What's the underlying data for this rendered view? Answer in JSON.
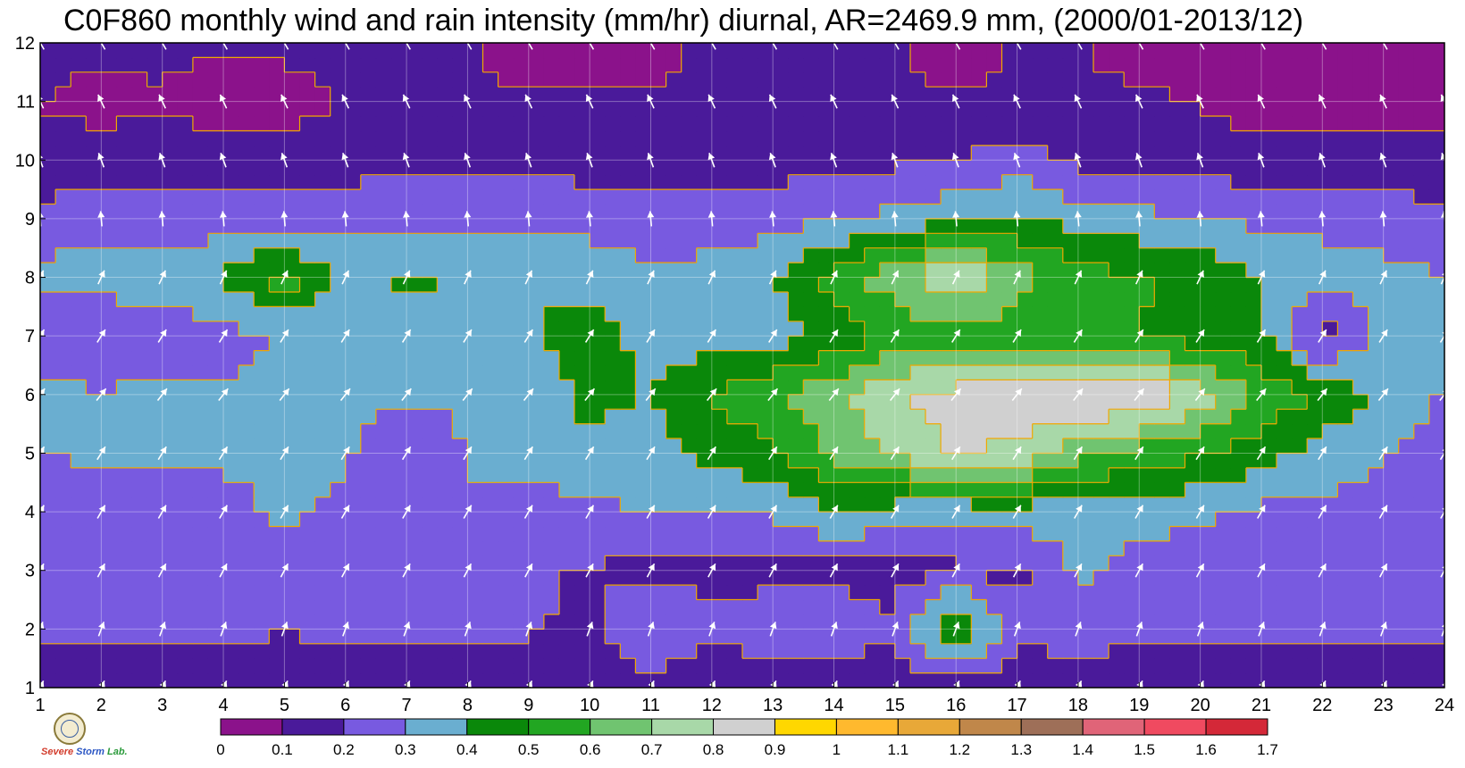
{
  "chart_data": {
    "type": "heatmap",
    "title": "C0F860 monthly wind and rain intensity (mm/hr) diurnal, AR=2469.9 mm, (2000/01-2013/12)",
    "x": [
      1,
      2,
      3,
      4,
      5,
      6,
      7,
      8,
      9,
      10,
      11,
      12,
      13,
      14,
      15,
      16,
      17,
      18,
      19,
      20,
      21,
      22,
      23,
      24
    ],
    "y": [
      1,
      2,
      3,
      4,
      5,
      6,
      7,
      8,
      9,
      10,
      11,
      12
    ],
    "xlim": [
      1,
      24
    ],
    "ylim": [
      1,
      12
    ],
    "x_ticks": [
      "1",
      "2",
      "3",
      "4",
      "5",
      "6",
      "7",
      "8",
      "9",
      "10",
      "11",
      "12",
      "13",
      "14",
      "15",
      "16",
      "17",
      "18",
      "19",
      "20",
      "21",
      "22",
      "23",
      "24"
    ],
    "y_ticks": [
      "1",
      "2",
      "3",
      "4",
      "5",
      "6",
      "7",
      "8",
      "9",
      "10",
      "11",
      "12"
    ],
    "grid": true,
    "z": [
      [
        0.12,
        0.13,
        0.13,
        0.13,
        0.11,
        0.13,
        0.13,
        0.14,
        0.14,
        0.14,
        0.14,
        0.13,
        0.14,
        0.14,
        0.14,
        0.14,
        0.17,
        0.18,
        0.17,
        0.16,
        0.15,
        0.14,
        0.14,
        0.15
      ],
      [
        0.22,
        0.21,
        0.22,
        0.22,
        0.21,
        0.22,
        0.21,
        0.21,
        0.21,
        0.18,
        0.32,
        0.21,
        0.28,
        0.26,
        0.21,
        0.55,
        0.21,
        0.22,
        0.21,
        0.21,
        0.21,
        0.21,
        0.21,
        0.21
      ],
      [
        0.21,
        0.23,
        0.24,
        0.26,
        0.28,
        0.25,
        0.22,
        0.22,
        0.21,
        0.19,
        0.18,
        0.18,
        0.16,
        0.17,
        0.17,
        0.18,
        0.18,
        0.32,
        0.26,
        0.25,
        0.24,
        0.23,
        0.22,
        0.22
      ],
      [
        0.27,
        0.26,
        0.26,
        0.28,
        0.31,
        0.29,
        0.26,
        0.3,
        0.27,
        0.28,
        0.3,
        0.29,
        0.31,
        0.41,
        0.35,
        0.34,
        0.35,
        0.35,
        0.33,
        0.32,
        0.28,
        0.27,
        0.26,
        0.25
      ],
      [
        0.3,
        0.31,
        0.32,
        0.31,
        0.31,
        0.31,
        0.21,
        0.3,
        0.32,
        0.38,
        0.34,
        0.44,
        0.48,
        0.62,
        0.73,
        0.81,
        0.78,
        0.64,
        0.56,
        0.52,
        0.45,
        0.36,
        0.3,
        0.27
      ],
      [
        0.32,
        0.31,
        0.32,
        0.31,
        0.32,
        0.32,
        0.32,
        0.32,
        0.33,
        0.43,
        0.4,
        0.5,
        0.58,
        0.67,
        0.8,
        0.84,
        0.87,
        0.93,
        0.92,
        0.75,
        0.58,
        0.48,
        0.38,
        0.29
      ],
      [
        0.2,
        0.21,
        0.23,
        0.26,
        0.31,
        0.32,
        0.34,
        0.36,
        0.38,
        0.46,
        0.36,
        0.36,
        0.35,
        0.43,
        0.52,
        0.55,
        0.53,
        0.51,
        0.5,
        0.44,
        0.42,
        0.15,
        0.35,
        0.3
      ],
      [
        0.33,
        0.35,
        0.36,
        0.41,
        0.55,
        0.38,
        0.42,
        0.39,
        0.4,
        0.36,
        0.32,
        0.34,
        0.4,
        0.55,
        0.66,
        0.81,
        0.65,
        0.54,
        0.51,
        0.49,
        0.4,
        0.35,
        0.33,
        0.3
      ],
      [
        0.24,
        0.26,
        0.25,
        0.24,
        0.24,
        0.26,
        0.28,
        0.28,
        0.27,
        0.26,
        0.25,
        0.24,
        0.26,
        0.28,
        0.33,
        0.38,
        0.41,
        0.36,
        0.33,
        0.3,
        0.28,
        0.27,
        0.25,
        0.23
      ],
      [
        0.12,
        0.14,
        0.15,
        0.16,
        0.16,
        0.16,
        0.17,
        0.18,
        0.18,
        0.16,
        0.15,
        0.15,
        0.16,
        0.17,
        0.18,
        0.19,
        0.25,
        0.18,
        0.16,
        0.15,
        0.14,
        0.14,
        0.14,
        0.13
      ],
      [
        0.1,
        0.07,
        0.09,
        0.05,
        0.05,
        0.11,
        0.12,
        0.12,
        0.12,
        0.11,
        0.12,
        0.11,
        0.12,
        0.12,
        0.12,
        0.11,
        0.12,
        0.12,
        0.13,
        0.09,
        0.06,
        0.05,
        0.06,
        0.07
      ],
      [
        0.13,
        0.13,
        0.12,
        0.11,
        0.13,
        0.13,
        0.12,
        0.11,
        0.02,
        0.03,
        0.05,
        0.13,
        0.13,
        0.12,
        0.11,
        0.02,
        0.12,
        0.12,
        0.02,
        0.03,
        0.03,
        0.03,
        0.02,
        0.02
      ]
    ],
    "colorbar": {
      "levels": [
        0,
        0.1,
        0.2,
        0.3,
        0.4,
        0.5,
        0.6,
        0.7,
        0.8,
        0.9,
        1,
        1.1,
        1.2,
        1.3,
        1.4,
        1.5,
        1.6,
        1.7
      ],
      "tick_labels": [
        "0",
        "0.1",
        "0.2",
        "0.3",
        "0.4",
        "0.5",
        "0.6",
        "0.7",
        "0.8",
        "0.9",
        "1",
        "1.1",
        "1.2",
        "1.3",
        "1.4",
        "1.5",
        "1.6",
        "1.7"
      ],
      "colors": [
        "#8b128b",
        "#4a1a9a",
        "#785ae0",
        "#6aaed0",
        "#0a880a",
        "#22a622",
        "#70c470",
        "#a8d8a8",
        "#d0d0d0",
        "#ffd700",
        "#ffb92e",
        "#e8a838",
        "#c0874a",
        "#9e6f58",
        "#e06478",
        "#f04a60",
        "#d42838"
      ]
    },
    "contour_color": "#f0a800",
    "wind_vectors": {
      "color": "#ffffff",
      "direction_deg_by_month": [
        25,
        20,
        28,
        30,
        32,
        38,
        32,
        25,
        355,
        340,
        335,
        330
      ]
    }
  },
  "logo": {
    "line1": "Severe",
    "line2": "Storm",
    "line3": "Lab."
  }
}
